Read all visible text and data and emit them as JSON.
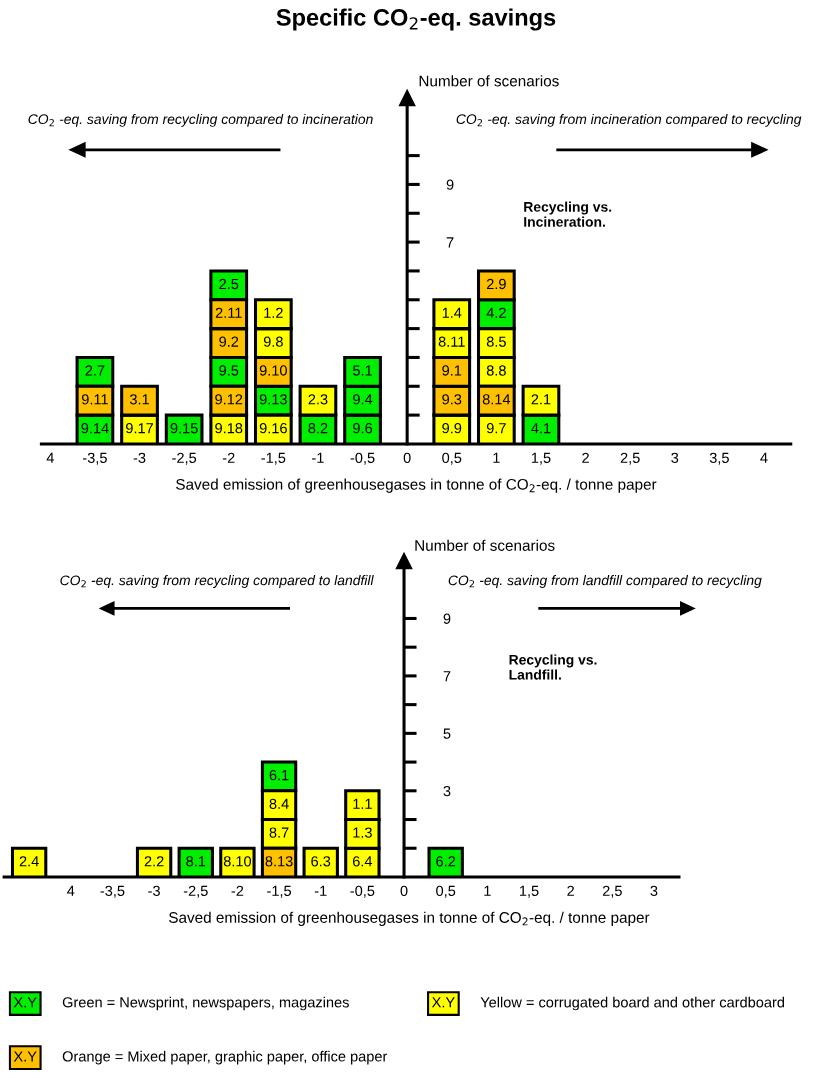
{
  "chart_data": [
    {
      "type": "bar",
      "title": "Specific CO$_{2}$-eq. savings",
      "xlabel": "Saved emission of greenhousegases in tonne of CO$_{2}$-eq. / tonne paper",
      "ylabel": "Number of scenarios",
      "annotations": [
        "CO$_{2}$ -eq. saving from recycling compared to incineration",
        "CO$_{2}$ -eq. saving from incineration compared to recycling",
        "Recycling vs.\nIncineration.",
        {
          "text": "9.14",
          "x": -3.5,
          "y": 1
        },
        {
          "text": "9.11",
          "x": -3.5,
          "y": 2
        },
        {
          "text": "2.7",
          "x": -3.5,
          "y": 3
        },
        {
          "text": "9.17",
          "x": -3,
          "y": 1
        },
        {
          "text": "3.1",
          "x": -3,
          "y": 2
        },
        {
          "text": "9.15",
          "x": -2.5,
          "y": 1
        },
        {
          "text": "9.18",
          "x": -2,
          "y": 1
        },
        {
          "text": "9.12",
          "x": -2,
          "y": 2
        },
        {
          "text": "9.5",
          "x": -2,
          "y": 3
        },
        {
          "text": "9.2",
          "x": -2,
          "y": 4
        },
        {
          "text": "2.11",
          "x": -2,
          "y": 5
        },
        {
          "text": "2.5",
          "x": -2,
          "y": 6
        },
        {
          "text": "9.16",
          "x": -1.5,
          "y": 1
        },
        {
          "text": "9.13",
          "x": -1.5,
          "y": 2
        },
        {
          "text": "9.10",
          "x": -1.5,
          "y": 3
        },
        {
          "text": "9.8",
          "x": -1.5,
          "y": 4
        },
        {
          "text": "1.2",
          "x": -1.5,
          "y": 5
        },
        {
          "text": "8.2",
          "x": -1,
          "y": 1
        },
        {
          "text": "2.3",
          "x": -1,
          "y": 2
        },
        {
          "text": "9.6",
          "x": -0.5,
          "y": 1
        },
        {
          "text": "9.4",
          "x": -0.5,
          "y": 2
        },
        {
          "text": "5.1",
          "x": -0.5,
          "y": 3
        },
        {
          "text": "9.9",
          "x": 0.5,
          "y": 1
        },
        {
          "text": "9.3",
          "x": 0.5,
          "y": 2
        },
        {
          "text": "9.1",
          "x": 0.5,
          "y": 3
        },
        {
          "text": "8.11",
          "x": 0.5,
          "y": 4
        },
        {
          "text": "1.4",
          "x": 0.5,
          "y": 5
        },
        {
          "text": "9.7",
          "x": 1,
          "y": 1
        },
        {
          "text": "8.14",
          "x": 1,
          "y": 2
        },
        {
          "text": "8.8",
          "x": 1,
          "y": 3
        },
        {
          "text": "8.5",
          "x": 1,
          "y": 4
        },
        {
          "text": "4.2",
          "x": 1,
          "y": 5
        },
        {
          "text": "2.9",
          "x": 1,
          "y": 6
        },
        {
          "text": "4.1",
          "x": 1.5,
          "y": 1
        },
        {
          "text": "2.1",
          "x": 1.5,
          "y": 2
        }
      ],
      "xlim": [
        -4.1,
        4.3
      ],
      "xticks": [
        {
          "value": -4,
          "label": "4"
        },
        {
          "value": -3.5,
          "label": "-3,5"
        },
        -3,
        {
          "value": -2.5,
          "label": "-2,5"
        },
        -2,
        {
          "value": -1.5,
          "label": "-1,5"
        },
        -1,
        {
          "value": -0.5,
          "label": "-0,5"
        },
        0,
        {
          "value": 0.5,
          "label": "0,5"
        },
        1,
        {
          "value": 1.5,
          "label": "1,5"
        },
        2,
        {
          "value": 2.5,
          "label": "2,5"
        },
        3,
        {
          "value": 3.5,
          "label": "3,5"
        },
        4
      ],
      "ylim": [
        0,
        12
      ],
      "yticks": [
        {
          "value": 1,
          "label": null
        },
        {
          "value": 2,
          "label": null
        },
        {
          "value": 3,
          "label": null
        },
        {
          "value": 4,
          "label": null
        },
        {
          "value": 5,
          "label": null
        },
        {
          "value": 6,
          "label": null
        },
        7,
        {
          "value": 8,
          "label": null
        },
        9,
        {
          "value": 10,
          "label": null
        }
      ],
      "series": [
        {
          "color": "#00ee00",
          "x": [
            -3.5,
            -2.5,
            -2,
            -1.5,
            -1,
            -0.5,
            1,
            1.5
          ],
          "base": [
            0,
            0,
            2,
            1,
            0,
            0,
            4,
            0
          ],
          "values": [
            1,
            1,
            1,
            1,
            1,
            1,
            1,
            1
          ]
        },
        {
          "color": "#00ee00",
          "x": [
            -3.5,
            -2,
            -0.5
          ],
          "base": [
            2,
            5,
            1
          ],
          "values": [
            1,
            1,
            1
          ]
        },
        {
          "color": "#00ee00",
          "x": [
            -0.5
          ],
          "base": [
            2
          ],
          "values": [
            1
          ]
        },
        {
          "color": "#ffff00",
          "x": [
            -3,
            -2,
            -1.5,
            -1,
            0.5,
            1,
            1.5
          ],
          "base": [
            0,
            0,
            0,
            1,
            0,
            0,
            1
          ],
          "values": [
            1,
            1,
            1,
            1,
            1,
            1,
            1
          ]
        },
        {
          "color": "#ffff00",
          "x": [
            -1.5,
            0.5,
            1
          ],
          "base": [
            3,
            3,
            2
          ],
          "values": [
            1,
            1,
            1
          ]
        },
        {
          "color": "#ffff00",
          "x": [
            -1.5,
            0.5,
            1
          ],
          "base": [
            4,
            4,
            3
          ],
          "values": [
            1,
            1,
            1
          ]
        },
        {
          "color": "#ffc000",
          "x": [
            -3.5,
            -3,
            -2,
            -1.5,
            0.5,
            1
          ],
          "base": [
            1,
            1,
            1,
            2,
            1,
            1
          ],
          "values": [
            1,
            1,
            1,
            1,
            1,
            1
          ]
        },
        {
          "color": "#ffc000",
          "x": [
            -2,
            0.5,
            1
          ],
          "base": [
            3,
            2,
            5
          ],
          "values": [
            1,
            1,
            1
          ]
        },
        {
          "color": "#ffc000",
          "x": [
            -2
          ],
          "base": [
            4
          ],
          "values": [
            1
          ]
        }
      ]
    },
    {
      "type": "bar",
      "xlabel": "Saved emission of greenhousegases in tonne of CO$_{2}$-eq. / tonne paper",
      "ylabel": "Number of scenarios",
      "annotations": [
        "CO$_{2}$ -eq. saving from recycling compared to landfill",
        "CO$_{2}$ -eq. saving from landfill compared to recycling",
        "Recycling vs.\nLandfill.",
        "X.Y",
        {
          "text": "2.4",
          "x": -4.5,
          "y": 1
        },
        {
          "text": "2.2",
          "x": -3,
          "y": 1
        },
        {
          "text": "8.1",
          "x": -2.5,
          "y": 1
        },
        {
          "text": "8.10",
          "x": -2,
          "y": 1
        },
        {
          "text": "8.13",
          "x": -1.5,
          "y": 1
        },
        {
          "text": "8.7",
          "x": -1.5,
          "y": 2
        },
        {
          "text": "8.4",
          "x": -1.5,
          "y": 3
        },
        {
          "text": "6.1",
          "x": -1.5,
          "y": 4
        },
        {
          "text": "6.3",
          "x": -1,
          "y": 1
        },
        {
          "text": "6.4",
          "x": -0.5,
          "y": 1
        },
        {
          "text": "1.3",
          "x": -0.5,
          "y": 2
        },
        {
          "text": "1.1",
          "x": -0.5,
          "y": 3
        },
        {
          "text": "6.2",
          "x": 0.5,
          "y": 1
        }
      ],
      "xlim": [
        -4.8,
        3.3
      ],
      "xticks": [
        {
          "value": -4,
          "label": "4"
        },
        {
          "value": -3.5,
          "label": "-3,5"
        },
        -3,
        {
          "value": -2.5,
          "label": "-2,5"
        },
        -2,
        {
          "value": -1.5,
          "label": "-1,5"
        },
        -1,
        {
          "value": -0.5,
          "label": "-0,5"
        },
        0,
        {
          "value": 0.5,
          "label": "0,5"
        },
        1,
        {
          "value": 1.5,
          "label": "1,5"
        },
        2,
        {
          "value": 2.5,
          "label": "2,5"
        },
        3
      ],
      "ylim": [
        0,
        11
      ],
      "yticks": [
        {
          "value": 1,
          "label": null
        },
        {
          "value": 2,
          "label": null
        },
        3,
        {
          "value": 4,
          "label": null
        },
        5,
        {
          "value": 6,
          "label": null
        },
        7,
        {
          "value": 8,
          "label": null
        },
        9
      ],
      "legend": "bottom",
      "series": [
        {
          "name": "Green = Newsprint, newspapers, magazines",
          "color": "#00ee00",
          "x": [
            -2.5,
            -1.5,
            0.5
          ],
          "base": [
            0,
            3,
            0
          ],
          "values": [
            1,
            1,
            1
          ]
        },
        {
          "name": "Yellow = corrugated board and other cardboard",
          "color": "#ffff00",
          "x": [
            -4.5,
            -3,
            -2,
            -1.5,
            -1,
            -0.5
          ],
          "base": [
            0,
            0,
            0,
            1,
            0,
            0
          ],
          "values": [
            1,
            1,
            1,
            1,
            1,
            1
          ]
        },
        {
          "name": "Orange = Mixed paper, graphic paper, office paper",
          "color": "#ffc000",
          "x": [
            -1.5
          ],
          "base": [
            0
          ],
          "values": [
            1
          ]
        },
        {
          "color": "#ffff00",
          "x": [
            -1.5,
            -0.5
          ],
          "base": [
            2,
            1
          ],
          "values": [
            1,
            1
          ]
        },
        {
          "color": "#ffff00",
          "x": [
            -0.5
          ],
          "base": [
            2
          ],
          "values": [
            1
          ]
        }
      ]
    }
  ]
}
